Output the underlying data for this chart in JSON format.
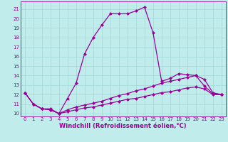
{
  "xlabel": "Windchill (Refroidissement éolien,°C)",
  "background_color": "#c0ecec",
  "grid_color": "#a0d8d8",
  "line_color": "#990099",
  "xlim": [
    -0.5,
    23.5
  ],
  "ylim": [
    9.7,
    21.8
  ],
  "xticks": [
    0,
    1,
    2,
    3,
    4,
    5,
    6,
    7,
    8,
    9,
    10,
    11,
    12,
    13,
    14,
    15,
    16,
    17,
    18,
    19,
    20,
    21,
    22,
    23
  ],
  "yticks": [
    10,
    11,
    12,
    13,
    14,
    15,
    16,
    17,
    18,
    19,
    20,
    21
  ],
  "x": [
    0,
    1,
    2,
    3,
    4,
    5,
    6,
    7,
    8,
    9,
    10,
    11,
    12,
    13,
    14,
    15,
    16,
    17,
    18,
    19,
    20,
    21,
    22,
    23
  ],
  "curve1": [
    12.2,
    11.0,
    10.5,
    10.4,
    10.0,
    11.6,
    13.2,
    16.3,
    18.0,
    19.3,
    20.5,
    20.5,
    20.5,
    20.8,
    21.2,
    18.5,
    13.4,
    13.7,
    14.2,
    14.1,
    14.0,
    12.9,
    12.1,
    12.0
  ],
  "curve2": [
    12.2,
    11.0,
    10.5,
    10.5,
    10.0,
    10.4,
    10.7,
    10.9,
    11.1,
    11.3,
    11.6,
    11.9,
    12.1,
    12.4,
    12.6,
    12.9,
    13.2,
    13.4,
    13.6,
    13.8,
    14.0,
    13.6,
    12.2,
    12.0
  ],
  "curve3": [
    12.2,
    11.0,
    10.5,
    10.4,
    10.0,
    10.2,
    10.4,
    10.6,
    10.7,
    10.9,
    11.1,
    11.3,
    11.5,
    11.6,
    11.8,
    12.0,
    12.2,
    12.3,
    12.5,
    12.7,
    12.8,
    12.6,
    12.0,
    12.0
  ],
  "markersize": 2.5,
  "linewidth": 0.9,
  "tick_fontsize": 5.0,
  "xlabel_fontsize": 6.0
}
